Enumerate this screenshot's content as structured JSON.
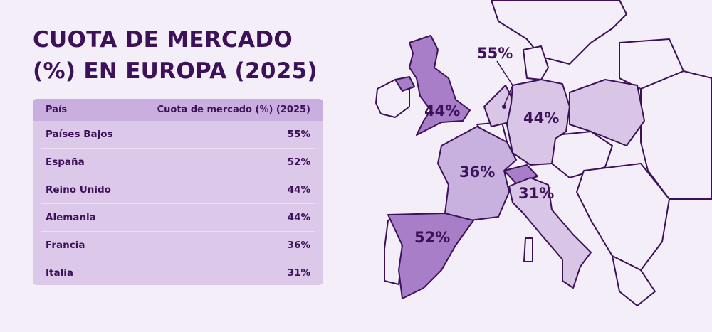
{
  "title": "CUOTA DE MERCADO\n(%) EN EUROPA (2025)",
  "table": {
    "headers": [
      "País",
      "Cuota de mercado (%) (2025)"
    ],
    "rows": [
      {
        "country": "Países Bajos",
        "value": "55%"
      },
      {
        "country": "España",
        "value": "52%"
      },
      {
        "country": "Reino Unido",
        "value": "44%"
      },
      {
        "country": "Alemania",
        "value": "44%"
      },
      {
        "country": "Francia",
        "value": "36%"
      },
      {
        "country": "Italia",
        "value": "31%"
      }
    ]
  },
  "map": {
    "labels": {
      "nl": "55%",
      "uk": "44%",
      "de": "44%",
      "fr": "36%",
      "es": "52%",
      "it": "31%"
    },
    "colors": {
      "high": "#a97ec9",
      "mid": "#c8b0df",
      "low": "#d9c6e6",
      "none": "#f3eef8",
      "border": "#3d1159"
    }
  }
}
